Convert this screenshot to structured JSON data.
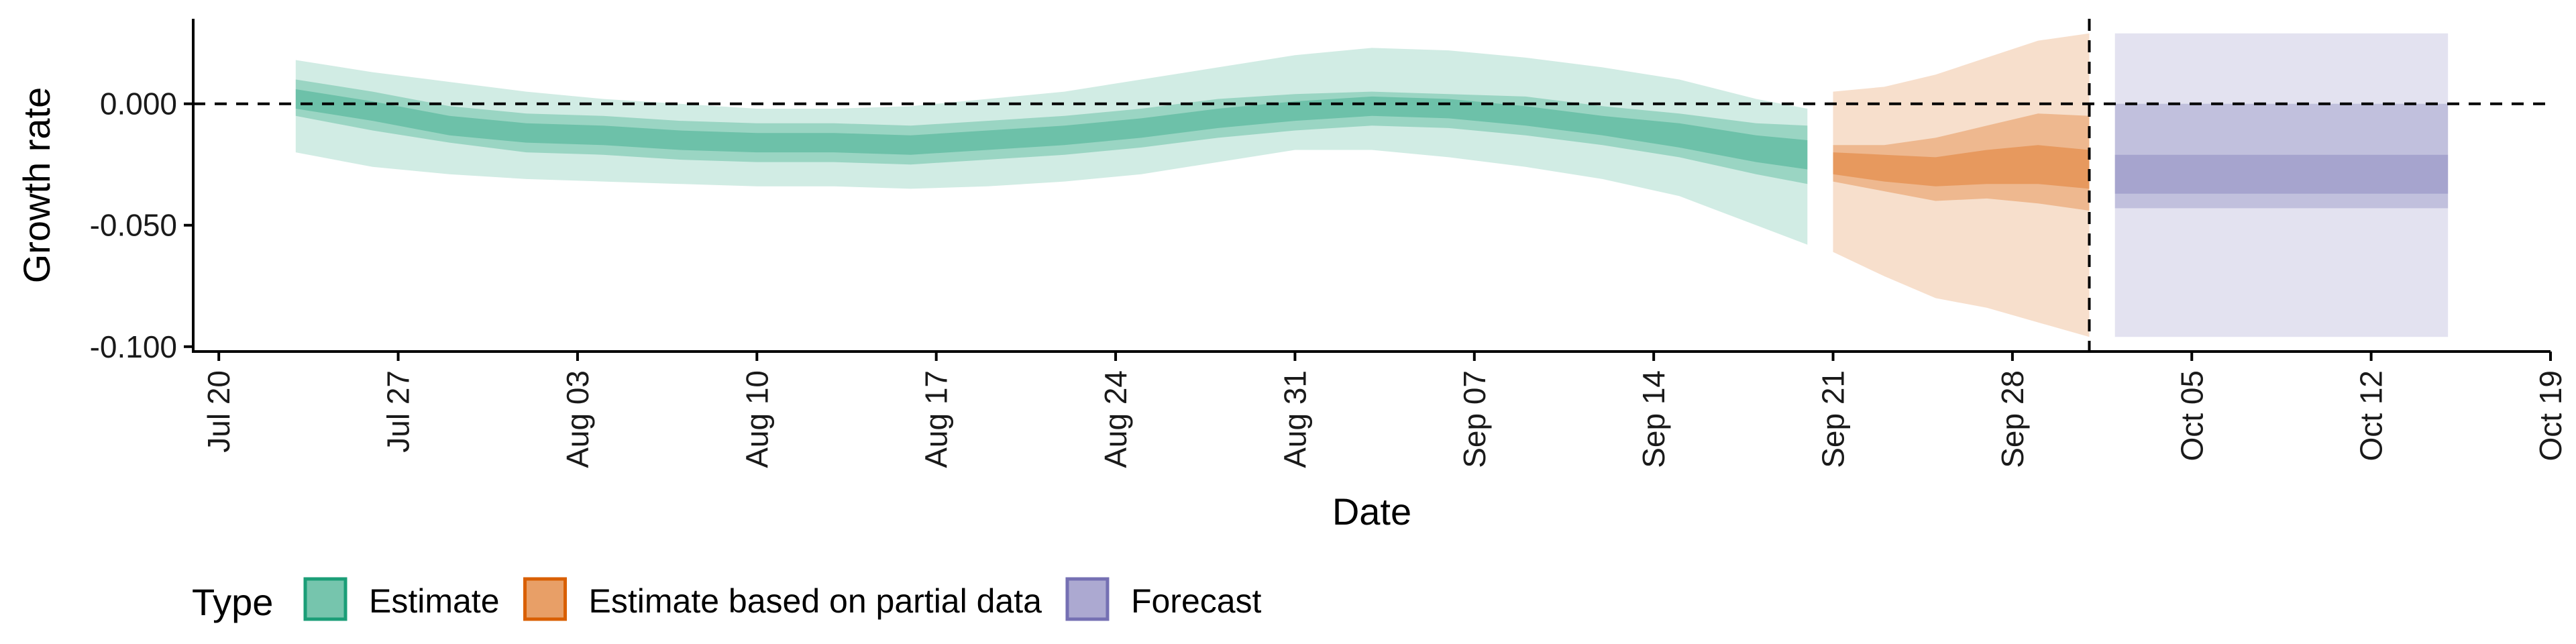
{
  "chart_data": {
    "type": "area",
    "title": "",
    "xlabel": "Date",
    "ylabel": "Growth rate",
    "x_domain": [
      "2020-07-19",
      "2020-10-19"
    ],
    "ylim": [
      -0.102,
      0.035
    ],
    "x_ticks": [
      {
        "date": "2020-07-20",
        "label": "Jul 20"
      },
      {
        "date": "2020-07-27",
        "label": "Jul 27"
      },
      {
        "date": "2020-08-03",
        "label": "Aug 03"
      },
      {
        "date": "2020-08-10",
        "label": "Aug 10"
      },
      {
        "date": "2020-08-17",
        "label": "Aug 17"
      },
      {
        "date": "2020-08-24",
        "label": "Aug 24"
      },
      {
        "date": "2020-08-31",
        "label": "Aug 31"
      },
      {
        "date": "2020-09-07",
        "label": "Sep 07"
      },
      {
        "date": "2020-09-14",
        "label": "Sep 14"
      },
      {
        "date": "2020-09-21",
        "label": "Sep 21"
      },
      {
        "date": "2020-09-28",
        "label": "Sep 28"
      },
      {
        "date": "2020-10-05",
        "label": "Oct 05"
      },
      {
        "date": "2020-10-12",
        "label": "Oct 12"
      },
      {
        "date": "2020-10-19",
        "label": "Oct 19"
      }
    ],
    "y_ticks": [
      {
        "value": 0.0,
        "label": "0.000"
      },
      {
        "value": -0.05,
        "label": "-0.050"
      },
      {
        "value": -0.1,
        "label": "-0.100"
      }
    ],
    "reference_lines": {
      "horizontal_y": 0,
      "vertical_date": "2020-10-01"
    },
    "grid": false,
    "legend": {
      "position": "bottom-left",
      "title": "Type",
      "entries": [
        {
          "label": "Estimate",
          "color": "#1B9E77"
        },
        {
          "label": "Estimate based on partial data",
          "color": "#D95F02"
        },
        {
          "label": "Forecast",
          "color": "#7570B3"
        }
      ]
    },
    "series": [
      {
        "name": "Estimate",
        "color": "#1B9E77",
        "dates": [
          "2020-07-23",
          "2020-07-26",
          "2020-07-29",
          "2020-08-01",
          "2020-08-04",
          "2020-08-07",
          "2020-08-10",
          "2020-08-13",
          "2020-08-16",
          "2020-08-19",
          "2020-08-22",
          "2020-08-25",
          "2020-08-28",
          "2020-08-31",
          "2020-09-03",
          "2020-09-06",
          "2020-09-09",
          "2020-09-12",
          "2020-09-15",
          "2020-09-18",
          "2020-09-20"
        ],
        "median": [
          0.002,
          -0.003,
          -0.009,
          -0.012,
          -0.013,
          -0.015,
          -0.016,
          -0.016,
          -0.017,
          -0.015,
          -0.013,
          -0.01,
          -0.006,
          -0.003,
          -0.001,
          -0.002,
          -0.005,
          -0.009,
          -0.013,
          -0.019,
          -0.021
        ],
        "lower_20": [
          -0.002,
          -0.007,
          -0.013,
          -0.016,
          -0.017,
          -0.019,
          -0.02,
          -0.02,
          -0.021,
          -0.019,
          -0.017,
          -0.014,
          -0.01,
          -0.007,
          -0.005,
          -0.006,
          -0.009,
          -0.013,
          -0.018,
          -0.024,
          -0.027
        ],
        "upper_20": [
          0.006,
          0.001,
          -0.005,
          -0.008,
          -0.009,
          -0.011,
          -0.012,
          -0.012,
          -0.013,
          -0.011,
          -0.009,
          -0.006,
          -0.002,
          0.001,
          0.003,
          0.002,
          -0.001,
          -0.005,
          -0.008,
          -0.013,
          -0.015
        ],
        "lower_50": [
          -0.005,
          -0.011,
          -0.016,
          -0.02,
          -0.021,
          -0.023,
          -0.024,
          -0.024,
          -0.025,
          -0.023,
          -0.021,
          -0.018,
          -0.014,
          -0.011,
          -0.009,
          -0.01,
          -0.013,
          -0.017,
          -0.022,
          -0.029,
          -0.033
        ],
        "upper_50": [
          0.01,
          0.005,
          -0.001,
          -0.004,
          -0.005,
          -0.007,
          -0.008,
          -0.008,
          -0.009,
          -0.007,
          -0.005,
          -0.002,
          0.002,
          0.004,
          0.005,
          0.004,
          0.003,
          -0.001,
          -0.004,
          -0.008,
          -0.009
        ],
        "lower_90": [
          -0.02,
          -0.026,
          -0.029,
          -0.031,
          -0.032,
          -0.033,
          -0.034,
          -0.034,
          -0.035,
          -0.034,
          -0.032,
          -0.029,
          -0.024,
          -0.019,
          -0.019,
          -0.022,
          -0.026,
          -0.031,
          -0.038,
          -0.05,
          -0.058
        ],
        "upper_90": [
          0.018,
          0.013,
          0.009,
          0.005,
          0.002,
          0.0,
          -0.002,
          -0.002,
          -0.001,
          0.002,
          0.005,
          0.01,
          0.015,
          0.02,
          0.023,
          0.022,
          0.019,
          0.015,
          0.01,
          0.002,
          -0.002
        ]
      },
      {
        "name": "Estimate based on partial data",
        "color": "#D95F02",
        "dates": [
          "2020-09-21",
          "2020-09-23",
          "2020-09-25",
          "2020-09-27",
          "2020-09-29",
          "2020-10-01"
        ],
        "median": [
          -0.024,
          -0.026,
          -0.028,
          -0.026,
          -0.025,
          -0.027
        ],
        "lower_20": [
          -0.029,
          -0.032,
          -0.034,
          -0.033,
          -0.033,
          -0.035
        ],
        "upper_20": [
          -0.02,
          -0.021,
          -0.022,
          -0.019,
          -0.017,
          -0.019
        ],
        "lower_50": [
          -0.032,
          -0.036,
          -0.04,
          -0.039,
          -0.041,
          -0.044
        ],
        "upper_50": [
          -0.017,
          -0.017,
          -0.014,
          -0.009,
          -0.004,
          -0.005
        ],
        "lower_90": [
          -0.061,
          -0.071,
          -0.08,
          -0.084,
          -0.09,
          -0.096
        ],
        "upper_90": [
          0.005,
          0.007,
          0.012,
          0.019,
          0.026,
          0.029
        ]
      },
      {
        "name": "Forecast",
        "color": "#7570B3",
        "dates": [
          "2020-10-02",
          "2020-10-15"
        ],
        "median": [
          -0.029,
          -0.029
        ],
        "lower_20": [
          -0.037,
          -0.037
        ],
        "upper_20": [
          -0.021,
          -0.021
        ],
        "lower_50": [
          -0.043,
          -0.043
        ],
        "upper_50": [
          0.0,
          0.0
        ],
        "lower_90": [
          -0.096,
          -0.096
        ],
        "upper_90": [
          0.029,
          0.029
        ]
      }
    ]
  }
}
